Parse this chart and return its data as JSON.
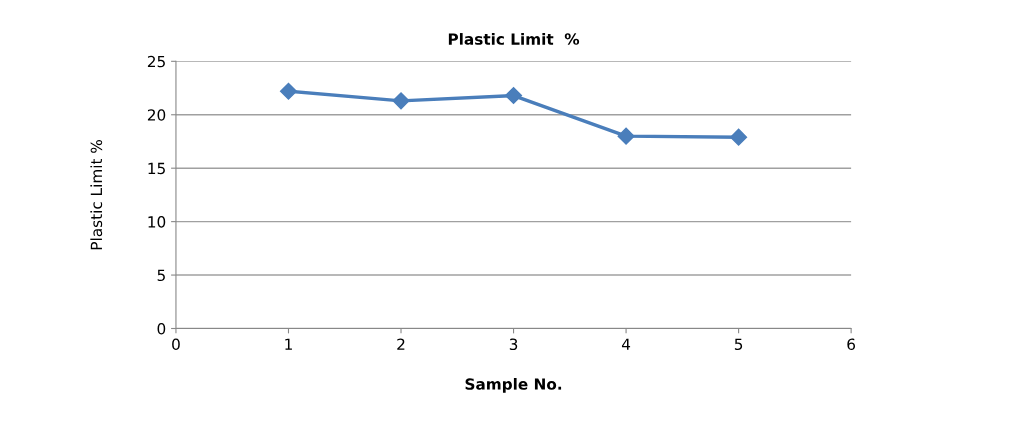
{
  "chart_data": {
    "type": "line",
    "title": "Plastic Limit  %",
    "xlabel": "Sample No.",
    "ylabel": "Plastic Limit %",
    "x": [
      1,
      2,
      3,
      4,
      5
    ],
    "series": [
      {
        "color": "#4a7ebb",
        "values": [
          22.2,
          21.3,
          21.8,
          18.0,
          17.9
        ]
      }
    ],
    "xlim": [
      0,
      6
    ],
    "xticks": [
      0,
      1,
      2,
      3,
      4,
      5,
      6
    ],
    "ylim": [
      0,
      25
    ],
    "yticks": [
      0,
      5,
      10,
      15,
      20,
      25
    ],
    "grid": "y",
    "marker": "diamond",
    "line_style": "solid",
    "legend": false
  }
}
